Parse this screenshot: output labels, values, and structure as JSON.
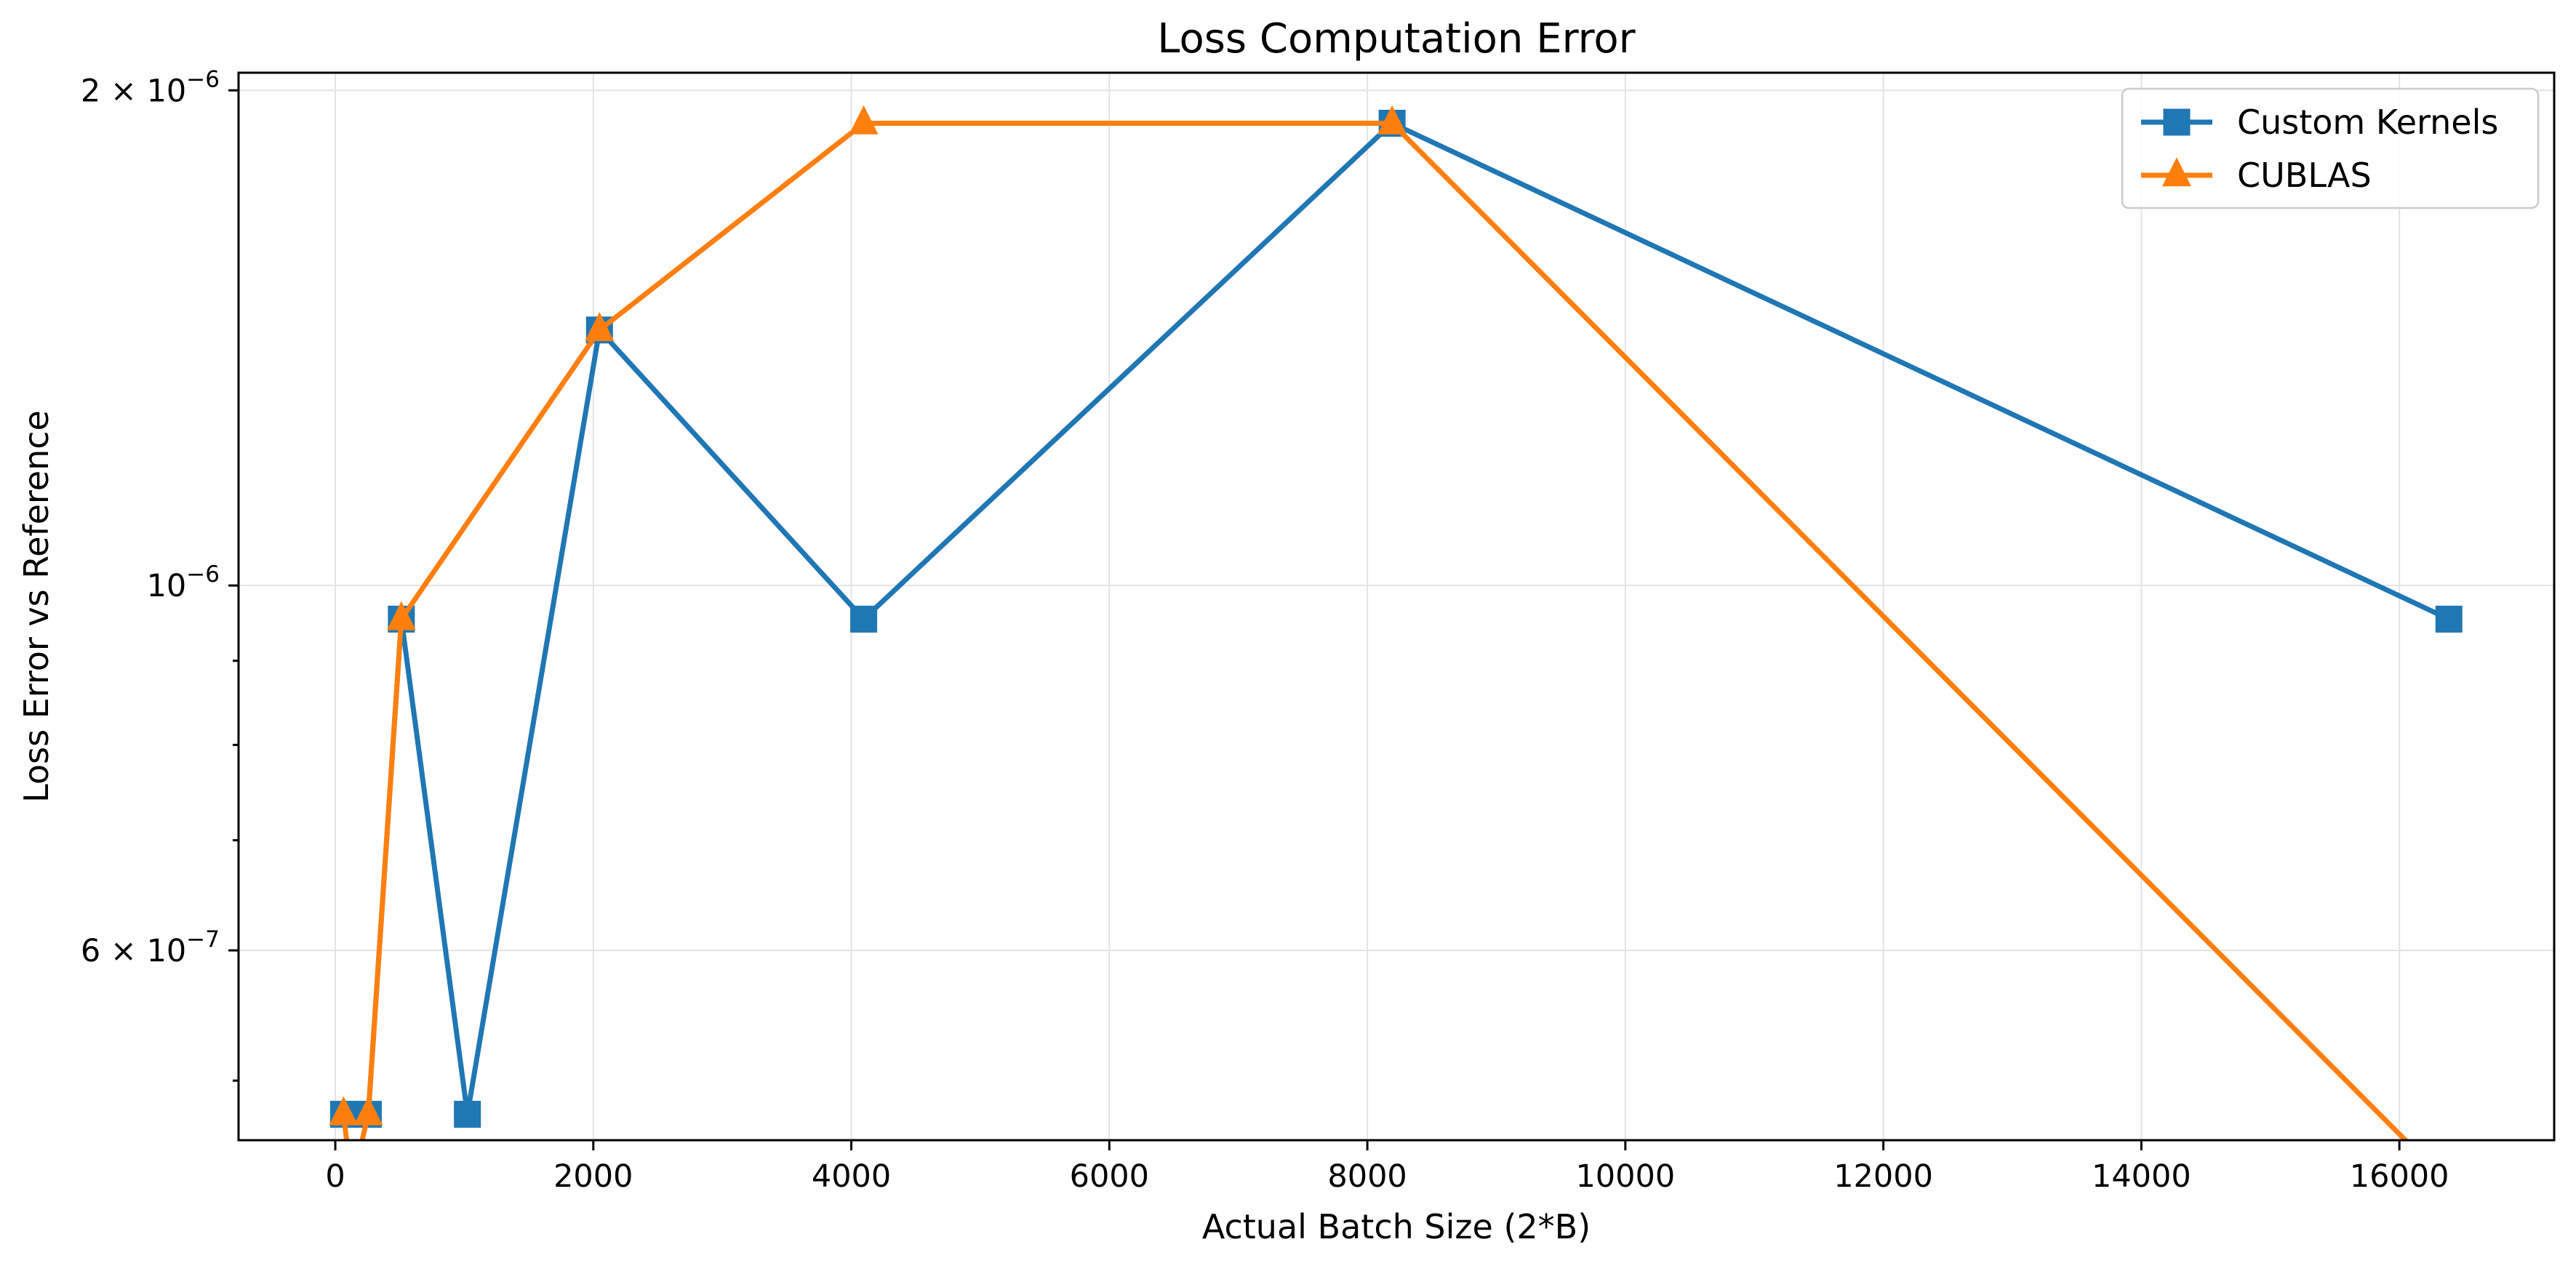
{
  "chart_data": {
    "type": "line",
    "title": "Loss Computation Error",
    "xlabel": "Actual Batch Size (2*B)",
    "ylabel": "Loss Error vs Reference",
    "yscale": "log",
    "xlim": [
      -750,
      17200
    ],
    "ylim": [
      4.6e-07,
      2.05e-06
    ],
    "x_ticks": [
      0,
      2000,
      4000,
      6000,
      8000,
      10000,
      12000,
      14000,
      16000
    ],
    "x_tick_labels": [
      "0",
      "2000",
      "4000",
      "6000",
      "8000",
      "10000",
      "12000",
      "14000",
      "16000"
    ],
    "y_major_ticks": [
      {
        "value": 2e-06,
        "mantissa": "2",
        "exponent": "−6"
      },
      {
        "value": 1e-06,
        "mantissa": "",
        "exponent": "−6"
      },
      {
        "value": 6e-07,
        "mantissa": "6",
        "exponent": "−7"
      }
    ],
    "y_minor_ticks": [
      5e-07,
      7e-07,
      8e-07,
      9e-07
    ],
    "grid": true,
    "legend_position": "top-right",
    "series": [
      {
        "name": "Custom Kernels",
        "color": "#1f77b4",
        "marker": "square",
        "x": [
          64,
          256,
          512,
          1024,
          2048,
          4096,
          8192,
          16384
        ],
        "y": [
          4.77e-07,
          4.77e-07,
          9.54e-07,
          4.77e-07,
          1.43e-06,
          9.54e-07,
          1.91e-06,
          9.54e-07
        ]
      },
      {
        "name": "CUBLAS",
        "color": "#ff7f0e",
        "marker": "triangle",
        "x": [
          64,
          128,
          256,
          512,
          2048,
          4096,
          8192,
          16384
        ],
        "y": [
          4.77e-07,
          0,
          4.77e-07,
          9.54e-07,
          1.43e-06,
          1.91e-06,
          1.91e-06,
          0
        ],
        "drop_to_floor": [
          128,
          2048,
          8192,
          16384
        ]
      }
    ]
  }
}
